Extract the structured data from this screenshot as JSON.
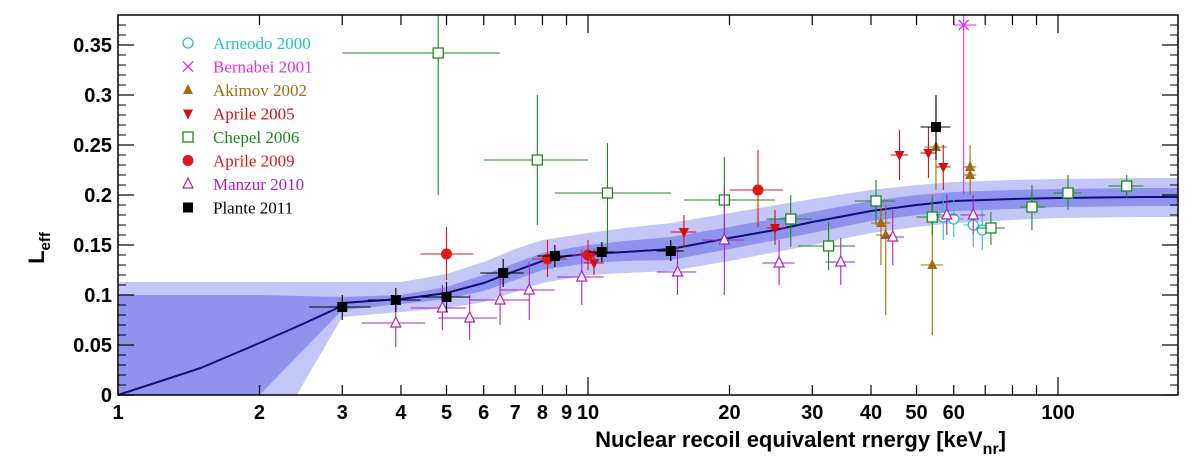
{
  "chart_data": {
    "type": "scatter",
    "title": "",
    "xlabel": "Nuclear recoil equivalent rnergy [keV",
    "xlabel_sub": "nr",
    "xlabel_end": "]",
    "ylabel": "L",
    "ylabel_sub": "eff",
    "xscale": "log",
    "xlim": [
      1,
      180
    ],
    "ylim": [
      0,
      0.38
    ],
    "grid": false,
    "legend_position": "top-left",
    "x_ticks": [
      {
        "v": 1,
        "label": "1"
      },
      {
        "v": 2,
        "label": "2"
      },
      {
        "v": 3,
        "label": "3"
      },
      {
        "v": 4,
        "label": "4"
      },
      {
        "v": 5,
        "label": "5"
      },
      {
        "v": 6,
        "label": "6"
      },
      {
        "v": 7,
        "label": "7"
      },
      {
        "v": 8,
        "label": "8"
      },
      {
        "v": 9,
        "label": "9"
      },
      {
        "v": 10,
        "label": "10"
      },
      {
        "v": 20,
        "label": "20"
      },
      {
        "v": 30,
        "label": "30"
      },
      {
        "v": 40,
        "label": "40"
      },
      {
        "v": 50,
        "label": "50"
      },
      {
        "v": 60,
        "label": "60"
      },
      {
        "v": 100,
        "label": "100"
      }
    ],
    "y_ticks": [
      {
        "v": 0,
        "label": "0"
      },
      {
        "v": 0.05,
        "label": "0.05"
      },
      {
        "v": 0.1,
        "label": "0.1"
      },
      {
        "v": 0.15,
        "label": "0.15"
      },
      {
        "v": 0.2,
        "label": "0.2"
      },
      {
        "v": 0.25,
        "label": "0.25"
      },
      {
        "v": 0.3,
        "label": "0.3"
      },
      {
        "v": 0.35,
        "label": "0.35"
      }
    ],
    "fit_line": {
      "color": "#10107a",
      "x": [
        1,
        1.5,
        2,
        2.5,
        2.9,
        3.0,
        4,
        5,
        6,
        7,
        8,
        9,
        10,
        12,
        15,
        20,
        25,
        30,
        40,
        50,
        60,
        80,
        100,
        150,
        180
      ],
      "y": [
        0,
        0.027,
        0.052,
        0.072,
        0.086,
        0.092,
        0.096,
        0.102,
        0.112,
        0.124,
        0.134,
        0.139,
        0.141,
        0.143,
        0.146,
        0.157,
        0.165,
        0.173,
        0.184,
        0.19,
        0.194,
        0.196,
        0.197,
        0.198,
        0.198
      ]
    },
    "band_inner": {
      "color": "#8e93ee",
      "x": [
        1,
        2,
        3,
        4,
        5,
        6,
        7,
        8,
        10,
        12,
        15,
        20,
        30,
        40,
        50,
        60,
        80,
        100,
        150,
        180
      ],
      "upper": [
        0.1,
        0.1,
        0.098,
        0.1,
        0.108,
        0.12,
        0.132,
        0.142,
        0.15,
        0.154,
        0.158,
        0.168,
        0.183,
        0.194,
        0.2,
        0.203,
        0.205,
        0.206,
        0.207,
        0.207
      ],
      "lower": [
        0,
        0,
        0.085,
        0.091,
        0.096,
        0.104,
        0.115,
        0.125,
        0.132,
        0.134,
        0.135,
        0.146,
        0.162,
        0.174,
        0.18,
        0.184,
        0.186,
        0.188,
        0.189,
        0.189
      ]
    },
    "band_outer": {
      "color": "#c3c6f7",
      "x": [
        1,
        2,
        2.4,
        3,
        4,
        5,
        6,
        7,
        8,
        10,
        12,
        15,
        20,
        30,
        40,
        50,
        60,
        80,
        100,
        150,
        180
      ],
      "upper": [
        0.113,
        0.113,
        0.113,
        0.113,
        0.113,
        0.121,
        0.133,
        0.146,
        0.155,
        0.162,
        0.167,
        0.172,
        0.182,
        0.196,
        0.205,
        0.21,
        0.213,
        0.215,
        0.216,
        0.217,
        0.217
      ],
      "lower": [
        0,
        0,
        0,
        0.078,
        0.083,
        0.087,
        0.093,
        0.103,
        0.112,
        0.12,
        0.122,
        0.124,
        0.134,
        0.15,
        0.162,
        0.168,
        0.172,
        0.175,
        0.177,
        0.178,
        0.178
      ]
    },
    "series": [
      {
        "name": "Arneodo 2000",
        "color": "#22c4c8",
        "marker": "circle-open",
        "points": [
          {
            "x": 57,
            "y": 0.178,
            "xlo": 54,
            "xhi": 60,
            "ylo": 0.155,
            "yhi": 0.2
          },
          {
            "x": 60,
            "y": 0.176,
            "xlo": 57,
            "xhi": 63,
            "ylo": 0.158,
            "yhi": 0.198
          },
          {
            "x": 66,
            "y": 0.17,
            "xlo": 63,
            "xhi": 70,
            "ylo": 0.148,
            "yhi": 0.192
          },
          {
            "x": 69,
            "y": 0.165,
            "xlo": 66,
            "xhi": 72,
            "ylo": 0.145,
            "yhi": 0.186
          }
        ]
      },
      {
        "name": "Bernabei 2001",
        "color": "#e030e0",
        "marker": "cross",
        "points": [
          {
            "x": 63,
            "y": 0.37,
            "xlo": 60,
            "xhi": 67,
            "ylo": 0.2,
            "yhi": 0.38
          }
        ]
      },
      {
        "name": "Akimov 2002",
        "color": "#a06c10",
        "marker": "triangle-up",
        "points": [
          {
            "x": 42,
            "y": 0.172,
            "xlo": 40,
            "xhi": 44,
            "ylo": 0.13,
            "yhi": 0.2
          },
          {
            "x": 43,
            "y": 0.16,
            "xlo": 41,
            "xhi": 45,
            "ylo": 0.08,
            "yhi": 0.19
          },
          {
            "x": 54,
            "y": 0.13,
            "xlo": 51,
            "xhi": 57,
            "ylo": 0.06,
            "yhi": 0.2
          },
          {
            "x": 55,
            "y": 0.248,
            "xlo": 52,
            "xhi": 58,
            "ylo": 0.205,
            "yhi": 0.292
          },
          {
            "x": 65,
            "y": 0.228,
            "xlo": 63,
            "xhi": 67,
            "ylo": 0.205,
            "yhi": 0.25
          },
          {
            "x": 65,
            "y": 0.22,
            "xlo": 63,
            "xhi": 67,
            "ylo": 0.2,
            "yhi": 0.24
          }
        ]
      },
      {
        "name": "Aprile 2005",
        "color": "#d01010",
        "marker": "triangle-down",
        "points": [
          {
            "x": 10.3,
            "y": 0.132,
            "xlo": 9.8,
            "xhi": 10.8,
            "ylo": 0.12,
            "yhi": 0.146
          },
          {
            "x": 16,
            "y": 0.163,
            "xlo": 15,
            "xhi": 17,
            "ylo": 0.148,
            "yhi": 0.18
          },
          {
            "x": 25,
            "y": 0.167,
            "xlo": 24,
            "xhi": 26.5,
            "ylo": 0.15,
            "yhi": 0.185
          },
          {
            "x": 46,
            "y": 0.24,
            "xlo": 44,
            "xhi": 48,
            "ylo": 0.215,
            "yhi": 0.265
          },
          {
            "x": 53,
            "y": 0.242,
            "xlo": 51,
            "xhi": 55,
            "ylo": 0.217,
            "yhi": 0.268
          },
          {
            "x": 57,
            "y": 0.228,
            "xlo": 55,
            "xhi": 59,
            "ylo": 0.205,
            "yhi": 0.25
          }
        ]
      },
      {
        "name": "Chepel 2006",
        "color": "#1a8a1a",
        "marker": "square-open",
        "points": [
          {
            "x": 4.8,
            "y": 0.342,
            "xlo": 3,
            "xhi": 6.5,
            "ylo": 0.2,
            "yhi": 0.38
          },
          {
            "x": 7.8,
            "y": 0.235,
            "xlo": 6,
            "xhi": 10,
            "ylo": 0.17,
            "yhi": 0.3
          },
          {
            "x": 11,
            "y": 0.202,
            "xlo": 8.5,
            "xhi": 15,
            "ylo": 0.143,
            "yhi": 0.252
          },
          {
            "x": 19.5,
            "y": 0.195,
            "xlo": 16,
            "xhi": 25,
            "ylo": 0.16,
            "yhi": 0.238
          },
          {
            "x": 27,
            "y": 0.176,
            "xlo": 24,
            "xhi": 30,
            "ylo": 0.148,
            "yhi": 0.2
          },
          {
            "x": 32.5,
            "y": 0.149,
            "xlo": 28,
            "xhi": 37,
            "ylo": 0.125,
            "yhi": 0.173
          },
          {
            "x": 41,
            "y": 0.194,
            "xlo": 37,
            "xhi": 45,
            "ylo": 0.17,
            "yhi": 0.215
          },
          {
            "x": 54,
            "y": 0.178,
            "xlo": 50,
            "xhi": 58,
            "ylo": 0.16,
            "yhi": 0.197
          },
          {
            "x": 72,
            "y": 0.167,
            "xlo": 67,
            "xhi": 77,
            "ylo": 0.15,
            "yhi": 0.183
          },
          {
            "x": 88,
            "y": 0.188,
            "xlo": 83,
            "xhi": 94,
            "ylo": 0.165,
            "yhi": 0.21
          },
          {
            "x": 105,
            "y": 0.202,
            "xlo": 98,
            "xhi": 112,
            "ylo": 0.185,
            "yhi": 0.22
          },
          {
            "x": 140,
            "y": 0.209,
            "xlo": 128,
            "xhi": 152,
            "ylo": 0.197,
            "yhi": 0.22
          }
        ]
      },
      {
        "name": "Aprile 2009",
        "color": "#e01818",
        "marker": "circle",
        "points": [
          {
            "x": 5,
            "y": 0.141,
            "xlo": 4.4,
            "xhi": 5.7,
            "ylo": 0.115,
            "yhi": 0.168
          },
          {
            "x": 8.2,
            "y": 0.136,
            "xlo": 7.6,
            "xhi": 9,
            "ylo": 0.118,
            "yhi": 0.155
          },
          {
            "x": 10,
            "y": 0.14,
            "xlo": 9.3,
            "xhi": 10.8,
            "ylo": 0.125,
            "yhi": 0.155
          },
          {
            "x": 23,
            "y": 0.205,
            "xlo": 20,
            "xhi": 26,
            "ylo": 0.168,
            "yhi": 0.245
          }
        ]
      },
      {
        "name": "Manzur 2010",
        "color": "#b020c0",
        "marker": "triangle-up-open",
        "points": [
          {
            "x": 3.9,
            "y": 0.072,
            "xlo": 3.3,
            "xhi": 4.5,
            "ylo": 0.048,
            "yhi": 0.097
          },
          {
            "x": 4.9,
            "y": 0.087,
            "xlo": 4.2,
            "xhi": 5.5,
            "ylo": 0.065,
            "yhi": 0.11
          },
          {
            "x": 5.6,
            "y": 0.077,
            "xlo": 4.8,
            "xhi": 6.4,
            "ylo": 0.055,
            "yhi": 0.1
          },
          {
            "x": 6.5,
            "y": 0.095,
            "xlo": 5.6,
            "xhi": 7.5,
            "ylo": 0.07,
            "yhi": 0.12
          },
          {
            "x": 7.5,
            "y": 0.105,
            "xlo": 6.5,
            "xhi": 8.5,
            "ylo": 0.075,
            "yhi": 0.133
          },
          {
            "x": 9.7,
            "y": 0.118,
            "xlo": 8.6,
            "xhi": 10.8,
            "ylo": 0.09,
            "yhi": 0.145
          },
          {
            "x": 15.5,
            "y": 0.123,
            "xlo": 14,
            "xhi": 17,
            "ylo": 0.1,
            "yhi": 0.148
          },
          {
            "x": 19.5,
            "y": 0.155,
            "xlo": 17.5,
            "xhi": 21.5,
            "ylo": 0.1,
            "yhi": 0.21
          },
          {
            "x": 25.5,
            "y": 0.132,
            "xlo": 23.5,
            "xhi": 27.5,
            "ylo": 0.11,
            "yhi": 0.155
          },
          {
            "x": 34.5,
            "y": 0.133,
            "xlo": 32,
            "xhi": 37,
            "ylo": 0.11,
            "yhi": 0.157
          },
          {
            "x": 44.5,
            "y": 0.158,
            "xlo": 42,
            "xhi": 47,
            "ylo": 0.13,
            "yhi": 0.185
          },
          {
            "x": 58,
            "y": 0.18,
            "xlo": 55,
            "xhi": 61,
            "ylo": 0.16,
            "yhi": 0.2
          },
          {
            "x": 66,
            "y": 0.18,
            "xlo": 62,
            "xhi": 70,
            "ylo": 0.16,
            "yhi": 0.2
          }
        ]
      },
      {
        "name": "Plante 2011",
        "color": "#000000",
        "marker": "square",
        "points": [
          {
            "x": 3,
            "y": 0.088,
            "xlo": 2.55,
            "xhi": 3.45,
            "ylo": 0.075,
            "yhi": 0.1
          },
          {
            "x": 3.9,
            "y": 0.095,
            "xlo": 3.4,
            "xhi": 4.4,
            "ylo": 0.083,
            "yhi": 0.107
          },
          {
            "x": 5,
            "y": 0.098,
            "xlo": 4.4,
            "xhi": 5.6,
            "ylo": 0.083,
            "yhi": 0.113
          },
          {
            "x": 6.6,
            "y": 0.122,
            "xlo": 5.9,
            "xhi": 7.3,
            "ylo": 0.108,
            "yhi": 0.136
          },
          {
            "x": 8.5,
            "y": 0.139,
            "xlo": 7.8,
            "xhi": 9.2,
            "ylo": 0.128,
            "yhi": 0.15
          },
          {
            "x": 10.7,
            "y": 0.143,
            "xlo": 10,
            "xhi": 11.4,
            "ylo": 0.133,
            "yhi": 0.153
          },
          {
            "x": 15,
            "y": 0.144,
            "xlo": 14,
            "xhi": 16,
            "ylo": 0.134,
            "yhi": 0.155
          },
          {
            "x": 55,
            "y": 0.268,
            "xlo": 51,
            "xhi": 59,
            "ylo": 0.235,
            "yhi": 0.3
          }
        ]
      }
    ]
  }
}
